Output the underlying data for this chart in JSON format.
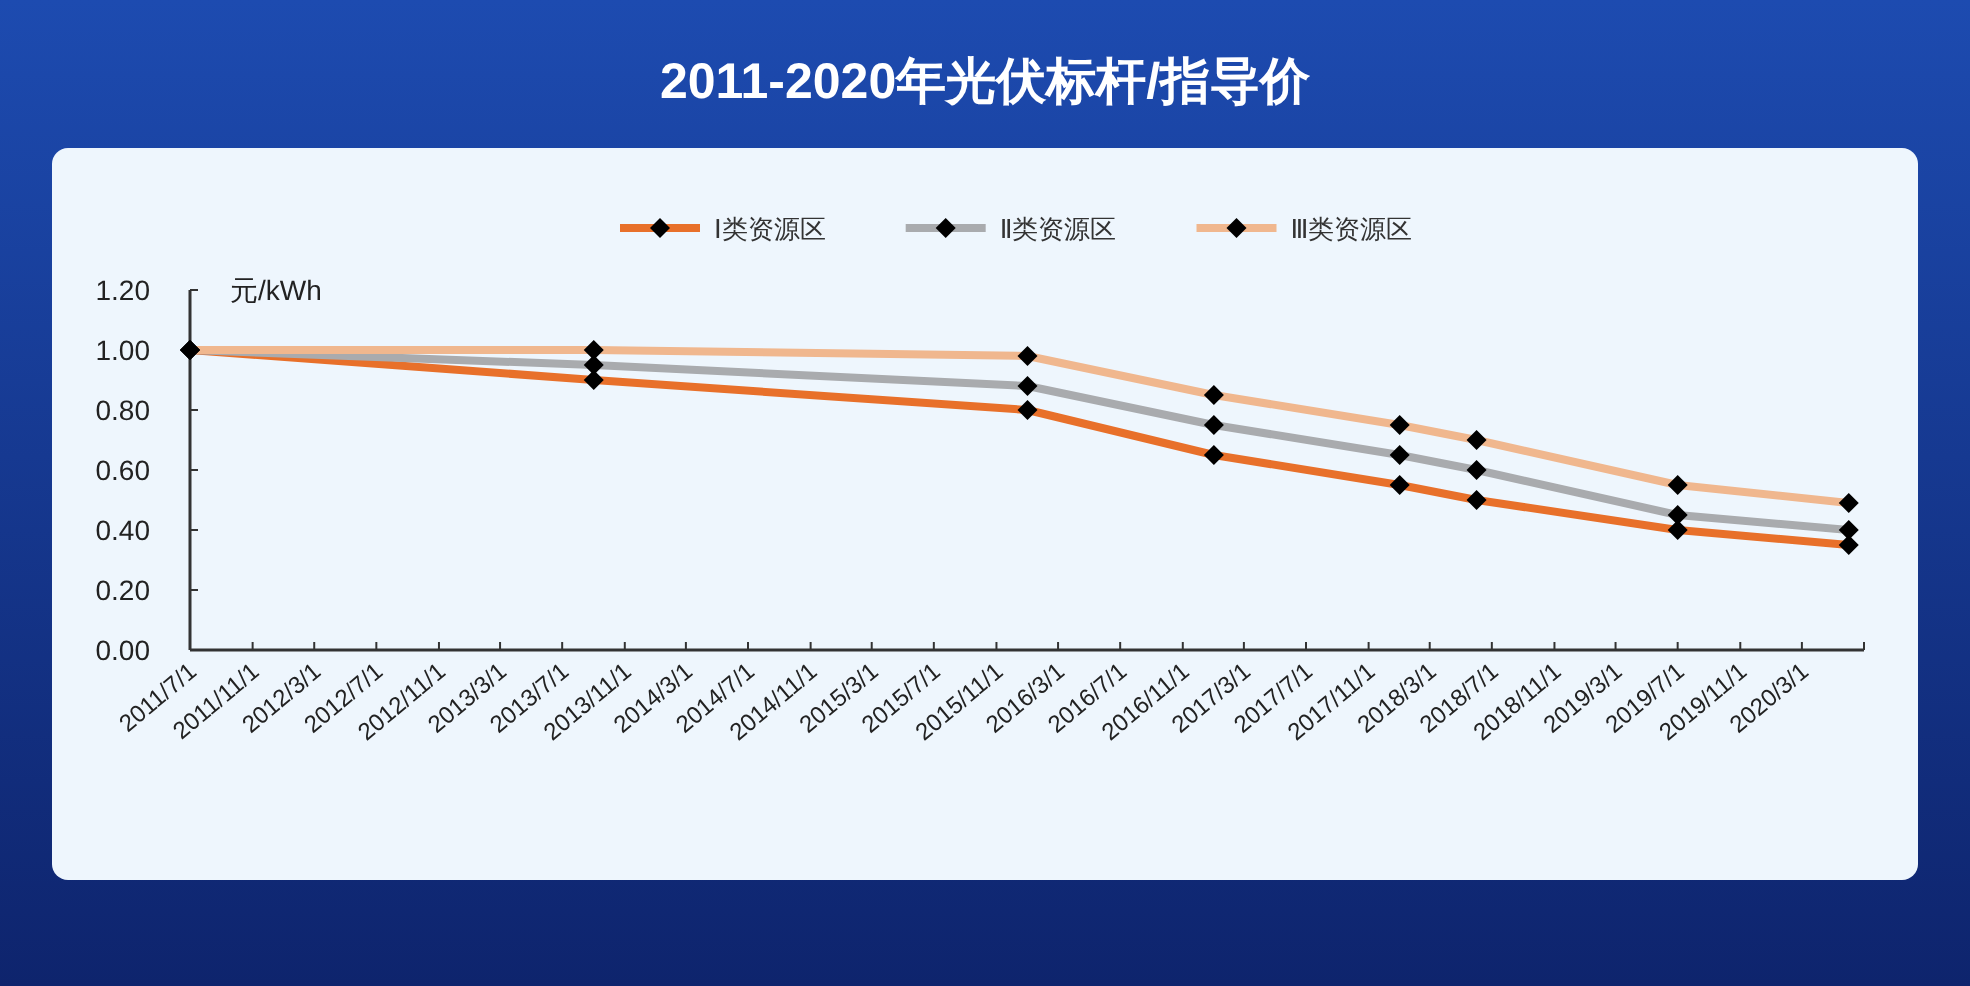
{
  "chart_data": {
    "type": "line",
    "title": "2011-2020年光伏标杆/指导价",
    "ylabel": "元/kWh",
    "x": [
      "2011-07-01",
      "2013-09-01",
      "2016-01-01",
      "2017-01-01",
      "2018-01-01",
      "2018-06-01",
      "2019-07-01",
      "2020-06-01"
    ],
    "series": [
      {
        "name": "Ⅰ类资源区",
        "color": "#e8702a",
        "values": [
          1.0,
          0.9,
          0.8,
          0.65,
          0.55,
          0.5,
          0.4,
          0.35
        ]
      },
      {
        "name": "Ⅱ类资源区",
        "color": "#a9abae",
        "values": [
          1.0,
          0.95,
          0.88,
          0.75,
          0.65,
          0.6,
          0.45,
          0.4
        ]
      },
      {
        "name": "Ⅲ类资源区",
        "color": "#f0b78e",
        "values": [
          1.0,
          1.0,
          0.98,
          0.85,
          0.75,
          0.7,
          0.55,
          0.49
        ]
      }
    ],
    "xlim": [
      "2011-07-01",
      "2020-07-01"
    ],
    "xticks": [
      {
        "value": "2011-07-01",
        "label": "2011/7/1"
      },
      {
        "value": "2011-11-01",
        "label": "2011/11/1"
      },
      {
        "value": "2012-03-01",
        "label": "2012/3/1"
      },
      {
        "value": "2012-07-01",
        "label": "2012/7/1"
      },
      {
        "value": "2012-11-01",
        "label": "2012/11/1"
      },
      {
        "value": "2013-03-01",
        "label": "2013/3/1"
      },
      {
        "value": "2013-07-01",
        "label": "2013/7/1"
      },
      {
        "value": "2013-11-01",
        "label": "2013/11/1"
      },
      {
        "value": "2014-03-01",
        "label": "2014/3/1"
      },
      {
        "value": "2014-07-01",
        "label": "2014/7/1"
      },
      {
        "value": "2014-11-01",
        "label": "2014/11/1"
      },
      {
        "value": "2015-03-01",
        "label": "2015/3/1"
      },
      {
        "value": "2015-07-01",
        "label": "2015/7/1"
      },
      {
        "value": "2015-11-01",
        "label": "2015/11/1"
      },
      {
        "value": "2016-03-01",
        "label": "2016/3/1"
      },
      {
        "value": "2016-07-01",
        "label": "2016/7/1"
      },
      {
        "value": "2016-11-01",
        "label": "2016/11/1"
      },
      {
        "value": "2017-03-01",
        "label": "2017/3/1"
      },
      {
        "value": "2017-07-01",
        "label": "2017/7/1"
      },
      {
        "value": "2017-11-01",
        "label": "2017/11/1"
      },
      {
        "value": "2018-03-01",
        "label": "2018/3/1"
      },
      {
        "value": "2018-07-01",
        "label": "2018/7/1"
      },
      {
        "value": "2018-11-01",
        "label": "2018/11/1"
      },
      {
        "value": "2019-03-01",
        "label": "2019/3/1"
      },
      {
        "value": "2019-07-01",
        "label": "2019/7/1"
      },
      {
        "value": "2019-11-01",
        "label": "2019/11/1"
      },
      {
        "value": "2020-03-01",
        "label": "2020/3/1"
      },
      {
        "value": "2020-07-01",
        "label": null
      }
    ],
    "ylim": [
      0,
      1.2
    ],
    "yticks": [
      {
        "value": 0,
        "label": "0.00"
      },
      {
        "value": 0.2,
        "label": "0.20"
      },
      {
        "value": 0.4,
        "label": "0.40"
      },
      {
        "value": 0.6,
        "label": "0.60"
      },
      {
        "value": 0.8,
        "label": "0.80"
      },
      {
        "value": 1.0,
        "label": "1.00"
      },
      {
        "value": 1.2,
        "label": "1.20"
      }
    ],
    "marker": "diamond",
    "legend": "top",
    "grid": false
  }
}
